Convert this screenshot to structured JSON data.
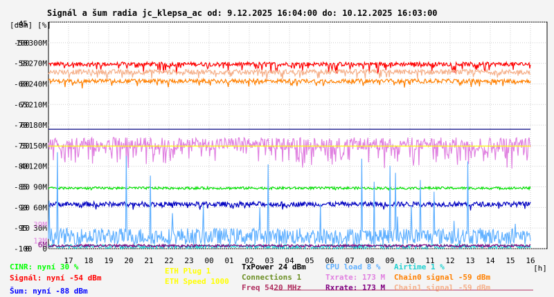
{
  "title": "Signál a šum radia jc_klepsa_ac od: 9.12.2025 16:04:00 do: 10.12.2025 16:03:00",
  "chart_data": {
    "type": "line",
    "y_units": [
      "[dBm]",
      "[%]"
    ],
    "x_unit": "[h]",
    "x_ticks": [
      "17",
      "18",
      "19",
      "20",
      "21",
      "22",
      "23",
      "00",
      "01",
      "02",
      "03",
      "04",
      "05",
      "06",
      "07",
      "08",
      "09",
      "10",
      "11",
      "12",
      "13",
      "14",
      "15",
      "16"
    ],
    "y_ticks": [
      {
        "dbm": "-45",
        "pct": "",
        "rate": ""
      },
      {
        "dbm": "-50",
        "pct": "100",
        "rate": "300M"
      },
      {
        "dbm": "-55",
        "pct": "90",
        "rate": "270M"
      },
      {
        "dbm": "-60",
        "pct": "80",
        "rate": "240M"
      },
      {
        "dbm": "-65",
        "pct": "70",
        "rate": "210M"
      },
      {
        "dbm": "-70",
        "pct": "60",
        "rate": "180M"
      },
      {
        "dbm": "-75",
        "pct": "50",
        "rate": "150M"
      },
      {
        "dbm": "-80",
        "pct": "40",
        "rate": "120M"
      },
      {
        "dbm": "-85",
        "pct": "30",
        "rate": "90M"
      },
      {
        "dbm": "-90",
        "pct": "20",
        "rate": "60M"
      },
      {
        "dbm": "-95",
        "pct": "10",
        "rate": "30M"
      },
      {
        "dbm": "-100",
        "pct": "0",
        "rate": "0"
      }
    ],
    "y_range_dbm": [
      -100,
      -45
    ],
    "grid": true,
    "side_marks": [
      {
        "text": "39M",
        "color": "#e080e0",
        "dbm": -94.1
      },
      {
        "text": "13M",
        "color": "#e080e0",
        "dbm": -98.1
      },
      {
        "text": "6M",
        "color": "#800080",
        "dbm": -99.0
      }
    ],
    "series": [
      {
        "name": "Signál",
        "color": "#ff0000",
        "unit": "dBm",
        "base": -55.2,
        "noise": 0.5,
        "dips": 0.12,
        "dip_depth": 2.0
      },
      {
        "name": "Chain1 signal",
        "color": "#f5b08a",
        "unit": "dBm",
        "base": -57.1,
        "noise": 0.6,
        "dips": 0.1,
        "dip_depth": 1.8
      },
      {
        "name": "Chain0 signal",
        "color": "#ff8000",
        "unit": "dBm",
        "base": -59.3,
        "noise": 0.5,
        "dips": 0.12,
        "dip_depth": 1.6
      },
      {
        "name": "ETH Speed",
        "color": "#000080",
        "unit": "dBm",
        "base": -71.0,
        "noise": 0.0,
        "dips": 0.0,
        "dip_depth": 0
      },
      {
        "name": "Txrate",
        "color": "#e080e0",
        "unit": "dBm",
        "base": -74.5,
        "noise": 1.5,
        "dips": 0.3,
        "dip_depth": 5
      },
      {
        "name": "ETH Plug",
        "color": "#ffff00",
        "unit": "dBm",
        "base": -75.1,
        "noise": 0.0,
        "dips": 0.0,
        "dip_depth": 0
      },
      {
        "name": "CINR",
        "color": "#00e000",
        "unit": "dBm",
        "base": -85.3,
        "noise": 0.3,
        "dips": 0.02,
        "dip_depth": 0.5
      },
      {
        "name": "Šum",
        "color": "#0000c0",
        "unit": "dBm",
        "base": -89.2,
        "noise": 0.6,
        "dips": 0.08,
        "dip_depth": 1
      },
      {
        "name": "CPU load",
        "color": "#60b0ff",
        "unit": "%",
        "base": 6,
        "noise": 4,
        "dips": 0,
        "dip_depth": 0
      },
      {
        "name": "Airtime",
        "color": "#20d0d0",
        "unit": "%",
        "base": 1,
        "noise": 1,
        "dips": 0,
        "dip_depth": 0
      },
      {
        "name": "Rxrate",
        "color": "#800080",
        "unit": "dBm",
        "base": -99.3,
        "noise": 0.3,
        "dips": 0,
        "dip_depth": 0
      }
    ]
  },
  "legend": [
    {
      "label": "CINR: nyní 30 %",
      "color": "#00ff00"
    },
    {
      "label": "Signál: nyní -54 dBm",
      "color": "#ff0000"
    },
    {
      "label": "Šum: nyní -88 dBm",
      "color": "#0000ff"
    },
    {
      "label": "ETH Plug 1",
      "color": "#ffff00"
    },
    {
      "label": "ETH Speed 1000",
      "color": "#ffff00"
    },
    {
      "label": "TxPower 24 dBm",
      "color": "#000000"
    },
    {
      "label": "Connections 1",
      "color": "#6b8e23"
    },
    {
      "label": "Freq 5420 MHz",
      "color": "#b03060"
    },
    {
      "label": "CPU load 8 %",
      "color": "#60b0ff"
    },
    {
      "label": "Txrate: 173 M",
      "color": "#e080e0"
    },
    {
      "label": "Rxrate: 173 M",
      "color": "#800080"
    },
    {
      "label": "Airtime 1 %",
      "color": "#20d0d0"
    },
    {
      "label": "Chain0 signal -59 dBm",
      "color": "#ff8000"
    },
    {
      "label": "Chain1 signal -59 dBm",
      "color": "#f5b08a"
    }
  ]
}
